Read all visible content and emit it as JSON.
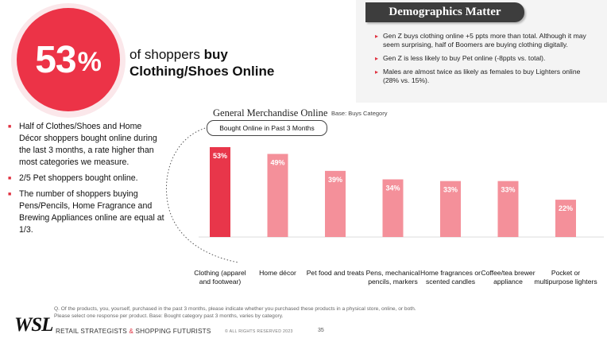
{
  "stat": {
    "number": "53",
    "percent_sign": "%"
  },
  "headline": {
    "lead": "of shoppers ",
    "bold_1": "buy",
    "bold_2": "Clothing/Shoes Online"
  },
  "demographics": {
    "title": "Demographics Matter",
    "bullets": [
      "Gen Z buys clothing online +5 ppts more than total. Although it may seem surprising, half of Boomers are buying clothing digitally.",
      "Gen Z is less likely to buy Pet online (-8ppts vs. total).",
      "Males are almost twice as likely as females to buy Lighters online (28% vs. 15%)."
    ]
  },
  "left_bullets": [
    "Half of Clothes/Shoes and Home Décor shoppers bought online during the last 3 months, a rate higher than most categories we measure.",
    "2/5 Pet shoppers bought online.",
    "The number of shoppers buying Pens/Pencils, Home Fragrance and Brewing Appliances online are equal at 1/3."
  ],
  "chart_header": {
    "title": "General Merchandise Online",
    "base": "Base: Buys Category",
    "pill": "Bought Online in Past 3 Months"
  },
  "chart_data": {
    "type": "bar",
    "title": "General Merchandise Online",
    "subtitle": "Bought Online in Past 3 Months",
    "categories": [
      "Clothing (apparel and footwear)",
      "Home décor",
      "Pet food and treats",
      "Pens, mechanical pencils, markers",
      "Home fragrances or scented candles",
      "Coffee/tea brewer appliance",
      "Pocket or multipurpose lighters"
    ],
    "values": [
      53,
      49,
      39,
      34,
      33,
      33,
      22
    ],
    "data_labels": [
      "53%",
      "49%",
      "39%",
      "34%",
      "33%",
      "33%",
      "22%"
    ],
    "ylim": [
      0,
      55
    ],
    "grid": false,
    "colors": {
      "highlight": "#e8364a",
      "default": "#f4909a"
    }
  },
  "footer": {
    "footnote": "Q. Of the products, you, yourself, purchased in the past 3 months, please indicate whether you purchased these products in a physical store, online, or both. Please select one response per product. Base: Bought category past 3 months, varies by category.",
    "logo": "WSL",
    "tagline_1": "RETAIL STRATEGISTS ",
    "tagline_amp": "&",
    "tagline_2": " SHOPPING FUTURISTS",
    "copyright": "© ALL RIGHTS RESERVED 2023",
    "page_number": "35"
  },
  "colors": {
    "accent": "#e0303f",
    "stat_circle": "#ec3347",
    "panel_bg": "#f4f4f4",
    "panel_title_bg": "#3d3d3d"
  }
}
